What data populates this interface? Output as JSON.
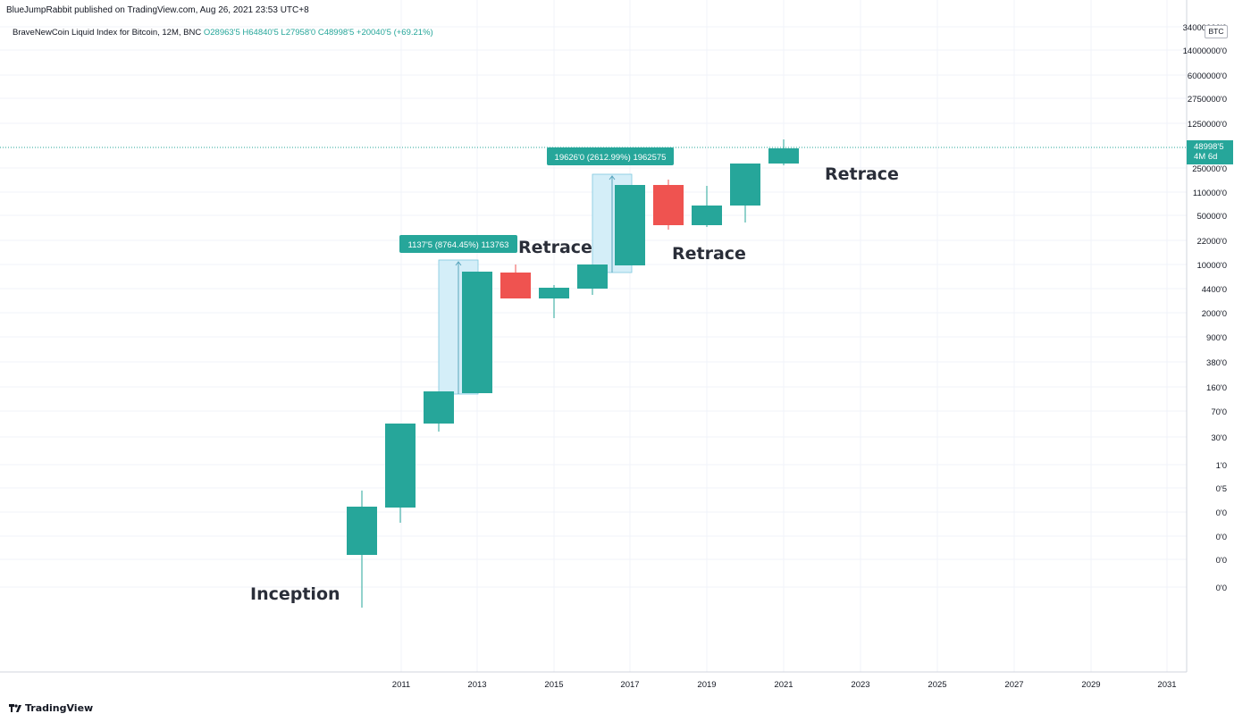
{
  "header": {
    "published_by": "BlueJumpRabbit published on TradingView.com, Aug 26, 2021 23:53 UTC+8"
  },
  "legend": {
    "symbol": "BraveNewCoin Liquid Index for Bitcoin, 12M, BNC",
    "open": "O28963'5",
    "high": "H64840'5",
    "low": "L27958'0",
    "close": "C48998'5",
    "change": "+20040'5 (+69.21%)"
  },
  "currency_badge": "BTC",
  "price_tag": {
    "price": "48998'5",
    "countdown": "4M 6d"
  },
  "footer": {
    "logo_text": "TradingView"
  },
  "chart_data": {
    "type": "candlestick",
    "scale": "log",
    "grid": true,
    "x_axis": {
      "tick_labels": [
        "2011",
        "2013",
        "2015",
        "2017",
        "2019",
        "2021",
        "2023",
        "2025",
        "2027",
        "2029",
        "2031"
      ]
    },
    "y_axis": {
      "position": "right",
      "tick_labels": [
        "34000000'0",
        "14000000'0",
        "6000000'0",
        "2750000'0",
        "1250000'0",
        "250000'0",
        "110000'0",
        "50000'0",
        "22000'0",
        "10000'0",
        "4400'0",
        "2000'0",
        "900'0",
        "380'0",
        "160'0",
        "70'0",
        "30'0",
        "1'0",
        "0'5",
        "0'0",
        "0'0",
        "0'0",
        "0'0"
      ]
    },
    "candles": [
      {
        "year": 2010,
        "color": "up"
      },
      {
        "year": 2011,
        "color": "up"
      },
      {
        "year": 2012,
        "color": "up"
      },
      {
        "year": 2013,
        "color": "up"
      },
      {
        "year": 2014,
        "color": "down"
      },
      {
        "year": 2015,
        "color": "up"
      },
      {
        "year": 2016,
        "color": "up"
      },
      {
        "year": 2017,
        "color": "up"
      },
      {
        "year": 2018,
        "color": "down"
      },
      {
        "year": 2019,
        "color": "up"
      },
      {
        "year": 2020,
        "color": "up"
      },
      {
        "year": 2021,
        "color": "up",
        "open": 28963.5,
        "high": 64840.5,
        "low": 27958.0,
        "close": 48998.5
      }
    ],
    "colors": {
      "up": "#26a69a",
      "down": "#ef5350",
      "measure_fill": "#d4eef8",
      "measure_stroke": "#26a69a",
      "grid": "#f0f3fa"
    },
    "measurements": [
      {
        "label": "1137'5 (8764.45%) 113763"
      },
      {
        "label": "19626'0 (2612.99%) 1962575"
      }
    ],
    "annotations": [
      {
        "text": "Inception"
      },
      {
        "text": "Retrace"
      },
      {
        "text": "Retrace"
      },
      {
        "text": "Retrace"
      }
    ]
  }
}
